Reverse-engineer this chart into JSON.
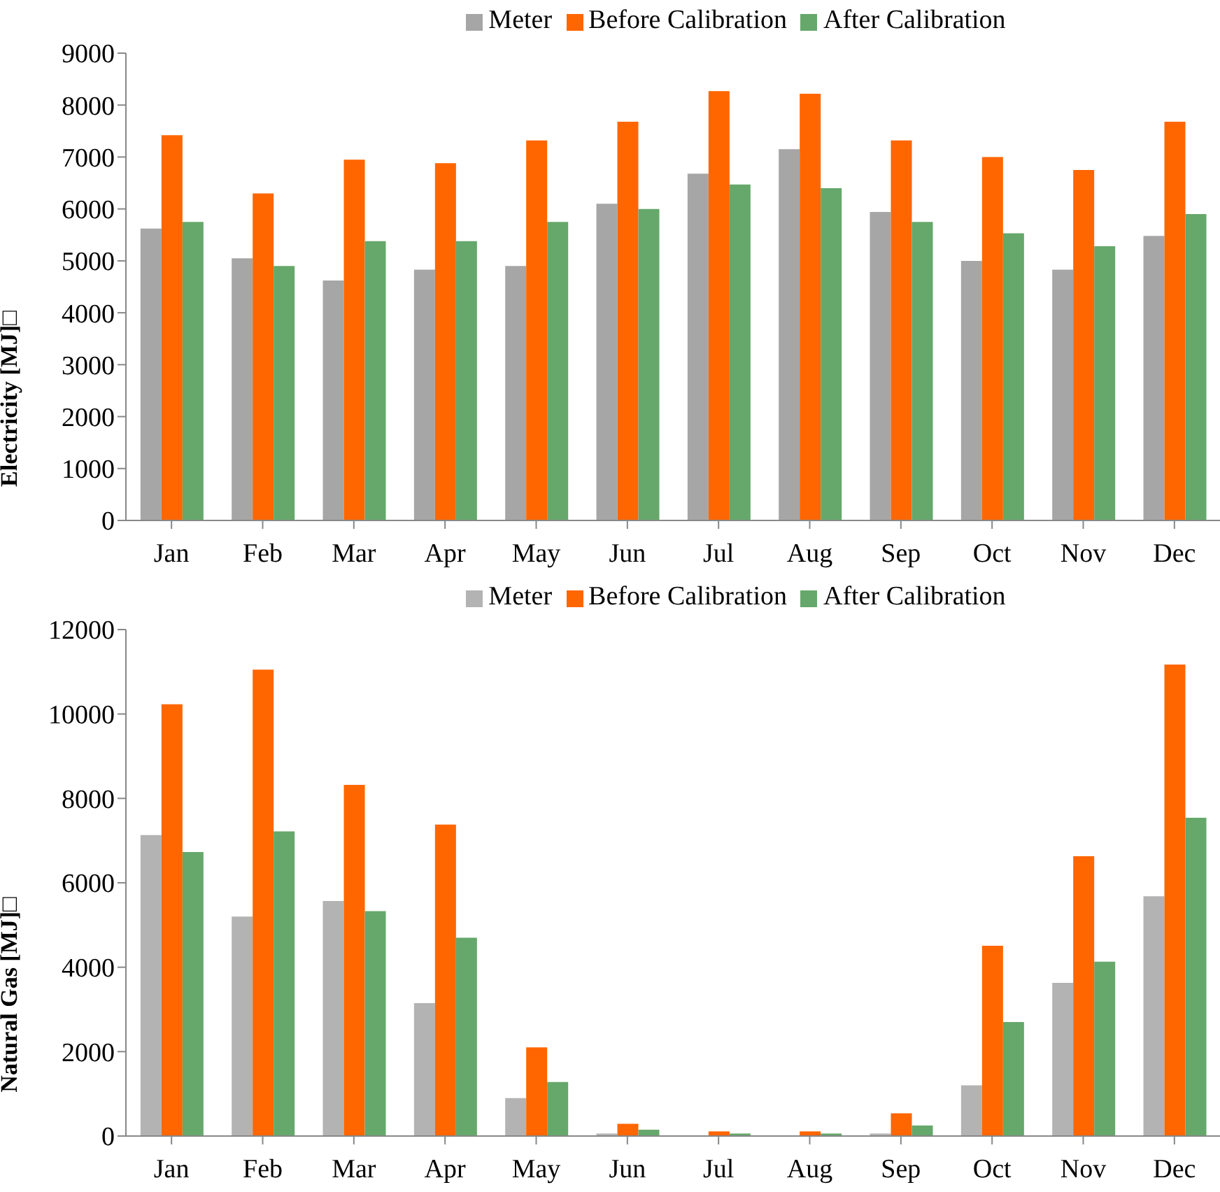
{
  "chart_data": [
    {
      "type": "bar",
      "ylabel": "Electricity [MJ]□",
      "categories": [
        "Jan",
        "Feb",
        "Mar",
        "Apr",
        "May",
        "Jun",
        "Jul",
        "Aug",
        "Sep",
        "Oct",
        "Nov",
        "Dec"
      ],
      "series": [
        {
          "name": "Meter",
          "color": "#a6a6a6",
          "values": [
            5620,
            5050,
            4620,
            4830,
            4900,
            6100,
            6680,
            7150,
            5940,
            5000,
            4830,
            5480
          ]
        },
        {
          "name": "Before Calibration",
          "color": "#ff6600",
          "values": [
            7420,
            6300,
            6950,
            6880,
            7320,
            7680,
            8270,
            8220,
            7320,
            7000,
            6750,
            7680
          ]
        },
        {
          "name": "After Calibration",
          "color": "#66a86b",
          "values": [
            5750,
            4900,
            5380,
            5380,
            5750,
            6000,
            6470,
            6400,
            5750,
            5530,
            5280,
            5900
          ]
        }
      ],
      "ylim": [
        0,
        9000
      ],
      "yticks": [
        0,
        1000,
        2000,
        3000,
        4000,
        5000,
        6000,
        7000,
        8000,
        9000
      ],
      "grid": false,
      "legend": "top"
    },
    {
      "type": "bar",
      "ylabel": "Natural Gas [MJ]□",
      "categories": [
        "Jan",
        "Feb",
        "Mar",
        "Apr",
        "May",
        "Jun",
        "Jul",
        "Aug",
        "Sep",
        "Oct",
        "Nov",
        "Dec"
      ],
      "series": [
        {
          "name": "Meter",
          "color": "#b3b3b3",
          "values": [
            7130,
            5200,
            5570,
            3150,
            900,
            60,
            null,
            null,
            60,
            1200,
            3630,
            5680
          ]
        },
        {
          "name": "Before Calibration",
          "color": "#ff6600",
          "values": [
            10230,
            11050,
            8320,
            7380,
            2100,
            290,
            110,
            110,
            540,
            4510,
            6630,
            11170
          ]
        },
        {
          "name": "After Calibration",
          "color": "#66a86b",
          "values": [
            6730,
            7220,
            5330,
            4700,
            1280,
            150,
            60,
            60,
            250,
            2700,
            4130,
            7540
          ]
        }
      ],
      "ylim": [
        0,
        12000
      ],
      "yticks": [
        0,
        2000,
        4000,
        6000,
        8000,
        10000,
        12000
      ],
      "grid": false,
      "legend": "top"
    }
  ]
}
